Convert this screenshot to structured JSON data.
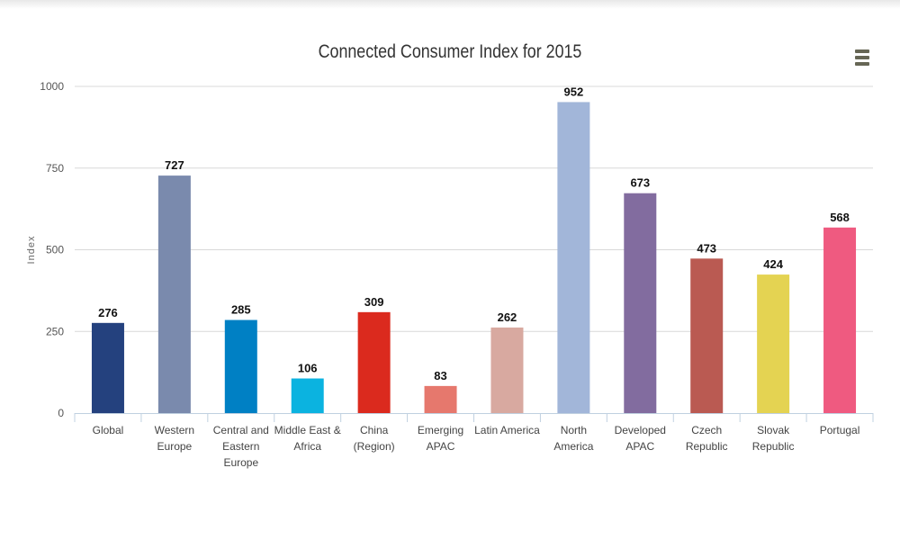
{
  "chart_data": {
    "type": "bar",
    "title": "Connected Consumer Index for 2015",
    "xlabel": "",
    "ylabel": "Index",
    "ylim": [
      0,
      1000
    ],
    "yticks": [
      0,
      250,
      500,
      750,
      1000
    ],
    "grid": true,
    "legend": "none",
    "categories": [
      [
        "Global"
      ],
      [
        "Western",
        "Europe"
      ],
      [
        "Central and",
        "Eastern",
        "Europe"
      ],
      [
        "Middle East &",
        "Africa"
      ],
      [
        "China",
        "(Region)"
      ],
      [
        "Emerging",
        "APAC"
      ],
      [
        "Latin America"
      ],
      [
        "North",
        "America"
      ],
      [
        "Developed",
        "APAC"
      ],
      [
        "Czech",
        "Republic"
      ],
      [
        "Slovak",
        "Republic"
      ],
      [
        "Portugal"
      ]
    ],
    "values": [
      276,
      727,
      285,
      106,
      309,
      83,
      262,
      952,
      673,
      473,
      424,
      568
    ],
    "colors": [
      "#24417e",
      "#7a8aad",
      "#0080c4",
      "#0bb3e0",
      "#db2a1e",
      "#e6786d",
      "#d8a9a0",
      "#a2b6d9",
      "#826c9f",
      "#ba5a52",
      "#e4d352",
      "#ef5a80"
    ]
  },
  "menu": {
    "icon": "hamburger-menu-icon"
  }
}
